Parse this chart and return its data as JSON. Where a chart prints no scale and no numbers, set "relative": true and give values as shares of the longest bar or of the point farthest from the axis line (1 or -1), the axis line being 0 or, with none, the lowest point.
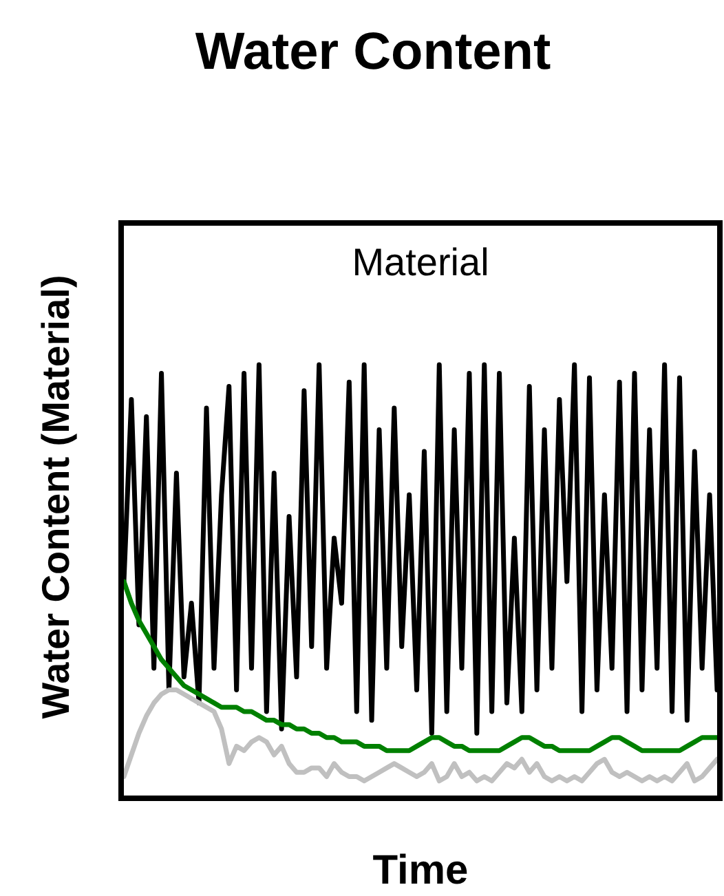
{
  "chart_data": {
    "type": "line",
    "title": "Water Content",
    "xlabel": "Time",
    "ylabel": "Water Content (Material)",
    "annotations": [
      "Material"
    ],
    "relative": true,
    "categories": [
      null,
      null,
      null,
      null,
      null,
      null,
      null,
      null,
      null,
      null,
      null,
      null,
      null,
      null,
      null,
      null,
      null,
      null,
      null,
      null,
      null,
      null,
      null,
      null,
      null,
      null,
      null,
      null,
      null,
      null,
      null,
      null,
      null,
      null,
      null,
      null,
      null,
      null,
      null,
      null,
      null,
      null,
      null,
      null,
      null,
      null,
      null,
      null,
      null,
      null,
      null,
      null,
      null,
      null,
      null,
      null,
      null,
      null,
      null,
      null,
      null,
      null,
      null,
      null,
      null,
      null,
      null,
      null,
      null,
      null,
      null,
      null,
      null,
      null,
      null,
      null,
      null,
      null,
      null,
      null
    ],
    "series": [
      {
        "color": "#000000",
        "values": [
          0.5,
          0.92,
          0.4,
          0.88,
          0.3,
          0.98,
          0.25,
          0.75,
          0.28,
          0.45,
          0.22,
          0.9,
          0.3,
          0.7,
          0.95,
          0.25,
          0.98,
          0.3,
          1,
          0.2,
          0.75,
          0.16,
          0.65,
          0.28,
          0.94,
          0.35,
          1,
          0.3,
          0.6,
          0.45,
          0.96,
          0.2,
          1,
          0.18,
          0.85,
          0.3,
          0.9,
          0.35,
          0.7,
          0.25,
          0.8,
          0.15,
          1,
          0.2,
          0.85,
          0.3,
          0.98,
          0.15,
          1,
          0.2,
          0.98,
          0.22,
          0.6,
          0.2,
          0.95,
          0.25,
          0.85,
          0.3,
          0.92,
          0.5,
          1,
          0.2,
          0.97,
          0.25,
          0.7,
          0.3,
          0.96,
          0.2,
          0.98,
          0.25,
          0.85,
          0.3,
          1,
          0.2,
          0.97,
          0.18,
          0.8,
          0.3,
          0.7,
          0.25
        ]
      },
      {
        "color": "#c0c0c0",
        "values": [
          0.05,
          0.1,
          0.15,
          0.19,
          0.22,
          0.24,
          0.25,
          0.25,
          0.24,
          0.23,
          0.22,
          0.21,
          0.2,
          0.16,
          0.08,
          0.12,
          0.11,
          0.13,
          0.14,
          0.13,
          0.1,
          0.12,
          0.08,
          0.06,
          0.06,
          0.07,
          0.07,
          0.05,
          0.08,
          0.06,
          0.05,
          0.05,
          0.04,
          0.05,
          0.06,
          0.07,
          0.08,
          0.07,
          0.06,
          0.05,
          0.06,
          0.08,
          0.04,
          0.05,
          0.08,
          0.05,
          0.06,
          0.04,
          0.05,
          0.04,
          0.06,
          0.08,
          0.07,
          0.09,
          0.06,
          0.08,
          0.05,
          0.04,
          0.05,
          0.04,
          0.05,
          0.04,
          0.06,
          0.08,
          0.09,
          0.06,
          0.05,
          0.06,
          0.05,
          0.04,
          0.05,
          0.04,
          0.05,
          0.04,
          0.06,
          0.08,
          0.04,
          0.05,
          0.07,
          0.09
        ]
      },
      {
        "color": "#008000",
        "values": [
          0.5,
          0.45,
          0.41,
          0.38,
          0.35,
          0.32,
          0.3,
          0.28,
          0.26,
          0.25,
          0.24,
          0.23,
          0.22,
          0.21,
          0.21,
          0.21,
          0.2,
          0.2,
          0.19,
          0.18,
          0.18,
          0.17,
          0.17,
          0.16,
          0.16,
          0.15,
          0.15,
          0.14,
          0.14,
          0.13,
          0.13,
          0.13,
          0.12,
          0.12,
          0.12,
          0.11,
          0.11,
          0.11,
          0.11,
          0.12,
          0.13,
          0.14,
          0.14,
          0.13,
          0.12,
          0.12,
          0.11,
          0.11,
          0.11,
          0.11,
          0.11,
          0.12,
          0.13,
          0.14,
          0.14,
          0.13,
          0.12,
          0.12,
          0.11,
          0.11,
          0.11,
          0.11,
          0.11,
          0.12,
          0.13,
          0.14,
          0.14,
          0.13,
          0.12,
          0.11,
          0.11,
          0.11,
          0.11,
          0.11,
          0.11,
          0.12,
          0.13,
          0.14,
          0.14,
          0.14
        ]
      }
    ]
  }
}
